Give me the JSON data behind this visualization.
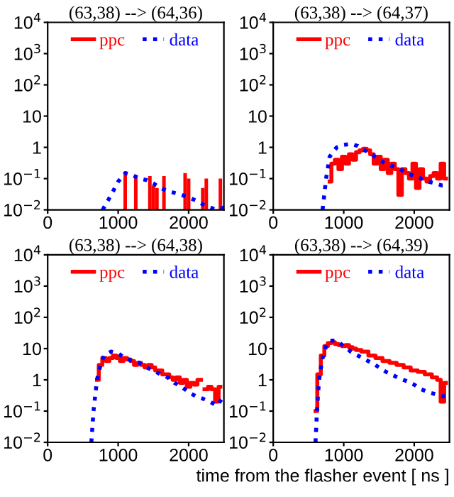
{
  "chart_data": [
    {
      "type": "line",
      "title": "(63,38) --> (64,36)",
      "log": "y",
      "xlim": [
        0,
        2500
      ],
      "ylim": [
        0.01,
        10000
      ],
      "xticks": [
        0,
        1000,
        2000
      ],
      "yticks": [
        {
          "value": 0.01,
          "label": "10$^{−2}$"
        },
        {
          "value": 0.1,
          "label": "10$^{−1}$"
        },
        1,
        10,
        {
          "value": 100,
          "label": "10$^{2}$"
        },
        {
          "value": 1000,
          "label": "10$^{3}$"
        },
        {
          "value": 10000,
          "label": "10$^{4}$"
        }
      ],
      "legend": "top",
      "grid": false,
      "series": [
        {
          "name": "ppc",
          "color": "#ff0000",
          "type": "bar",
          "x": [
            1100,
            1250,
            1450,
            1500,
            1550,
            1650,
            1950,
            2000,
            2200,
            2250,
            2450
          ],
          "values": [
            0.15,
            0.13,
            0.12,
            0.06,
            0.05,
            0.12,
            0.15,
            0.1,
            0.05,
            0.1,
            0.1
          ]
        },
        {
          "name": "data",
          "color": "#0000ff",
          "line_style": "dotted",
          "x": [
            780,
            900,
            1000,
            1100,
            1200,
            1300,
            1400,
            1500,
            1600,
            1700,
            1800,
            1900,
            2000,
            2100,
            2200,
            2300,
            2400,
            2500
          ],
          "values": [
            0.01,
            0.03,
            0.08,
            0.15,
            0.13,
            0.1,
            0.09,
            0.07,
            0.05,
            0.04,
            0.035,
            0.03,
            0.025,
            0.02,
            0.015,
            0.012,
            0.01,
            0.012
          ]
        }
      ]
    },
    {
      "type": "line",
      "title": "(63,38) --> (64,37)",
      "log": "y",
      "xlim": [
        0,
        2500
      ],
      "ylim": [
        0.01,
        10000
      ],
      "xticks": [
        0,
        1000,
        2000
      ],
      "yticks": [
        {
          "value": 0.01,
          "label": "10$^{−2}$"
        },
        {
          "value": 0.1,
          "label": "10$^{−1}$"
        },
        1,
        10,
        {
          "value": 100,
          "label": "10$^{2}$"
        },
        {
          "value": 1000,
          "label": "10$^{3}$"
        },
        {
          "value": 10000,
          "label": "10$^{4}$"
        }
      ],
      "legend": "top",
      "grid": false,
      "series": [
        {
          "name": "ppc",
          "color": "#ff0000",
          "type": "step",
          "line_style": "solid",
          "x": [
            800,
            850,
            900,
            950,
            1000,
            1050,
            1100,
            1150,
            1200,
            1250,
            1300,
            1350,
            1400,
            1450,
            1500,
            1550,
            1600,
            1650,
            1700,
            1750,
            1800,
            1850,
            1900,
            1950,
            2000,
            2050,
            2100,
            2150,
            2200,
            2250,
            2300,
            2350,
            2400,
            2450
          ],
          "values": [
            0.08,
            0.3,
            0.4,
            0.2,
            0.5,
            0.3,
            0.6,
            0.4,
            0.7,
            0.8,
            0.9,
            0.8,
            0.6,
            0.3,
            0.5,
            0.2,
            0.4,
            0.15,
            0.3,
            0.2,
            0.03,
            0.2,
            0.15,
            0.1,
            0.3,
            0.05,
            0.2,
            0.1,
            0.08,
            0.12,
            0.15,
            0.1,
            0.3,
            0.1
          ]
        },
        {
          "name": "data",
          "color": "#0000ff",
          "line_style": "dotted",
          "x": [
            700,
            750,
            800,
            900,
            1000,
            1100,
            1200,
            1300,
            1400,
            1500,
            1600,
            1700,
            1800,
            1900,
            2000,
            2100,
            2200,
            2300,
            2400,
            2500
          ],
          "values": [
            0.01,
            0.1,
            0.5,
            1.0,
            1.2,
            1.3,
            1.1,
            0.8,
            0.6,
            0.4,
            0.3,
            0.25,
            0.2,
            0.15,
            0.12,
            0.1,
            0.08,
            0.07,
            0.06,
            0.06
          ]
        }
      ]
    },
    {
      "type": "line",
      "title": "(63,38) --> (64,38)",
      "log": "y",
      "xlim": [
        0,
        2500
      ],
      "ylim": [
        0.01,
        10000
      ],
      "xticks": [
        0,
        1000,
        2000
      ],
      "yticks": [
        {
          "value": 0.01,
          "label": "10$^{−2}$"
        },
        {
          "value": 0.1,
          "label": "10$^{−1}$"
        },
        1,
        10,
        {
          "value": 100,
          "label": "10$^{2}$"
        },
        {
          "value": 1000,
          "label": "10$^{3}$"
        },
        {
          "value": 10000,
          "label": "10$^{4}$"
        }
      ],
      "legend": "top",
      "grid": false,
      "series": [
        {
          "name": "ppc",
          "color": "#ff0000",
          "type": "step",
          "line_style": "solid",
          "x": [
            700,
            750,
            800,
            850,
            900,
            950,
            1000,
            1050,
            1100,
            1150,
            1200,
            1250,
            1300,
            1350,
            1400,
            1450,
            1500,
            1550,
            1600,
            1650,
            1700,
            1750,
            1800,
            1850,
            1900,
            1950,
            2000,
            2050,
            2100,
            2150,
            2200,
            2250,
            2300,
            2350,
            2400,
            2450
          ],
          "values": [
            1,
            3,
            5,
            4,
            5,
            6,
            5,
            4,
            5,
            4.5,
            4,
            3,
            3.5,
            3,
            2.5,
            3,
            2.5,
            2,
            2,
            1.5,
            1.5,
            1.2,
            1,
            1.2,
            0.8,
            1,
            0.6,
            0.8,
            0.7,
            1,
            null,
            0.5,
            0.6,
            0.5,
            0.2,
            0.6
          ]
        },
        {
          "name": "data",
          "color": "#0000ff",
          "line_style": "dotted",
          "x": [
            620,
            650,
            700,
            750,
            800,
            900,
            1000,
            1100,
            1200,
            1300,
            1400,
            1500,
            1600,
            1700,
            1800,
            1900,
            2000,
            2100,
            2200,
            2300,
            2400,
            2500
          ],
          "values": [
            0.01,
            0.1,
            1,
            3,
            6,
            8,
            7,
            5,
            4,
            3.5,
            2.5,
            2,
            1.5,
            1.2,
            0.8,
            0.6,
            0.4,
            0.3,
            0.25,
            0.2,
            0.15,
            0.3
          ]
        }
      ]
    },
    {
      "type": "line",
      "title": "(63,38) --> (64,39)",
      "xlabel": "time from the flasher event [ ns ]",
      "log": "y",
      "xlim": [
        0,
        2500
      ],
      "ylim": [
        0.01,
        10000
      ],
      "xticks": [
        0,
        1000,
        2000
      ],
      "yticks": [
        {
          "value": 0.01,
          "label": "10$^{−2}$"
        },
        {
          "value": 0.1,
          "label": "10$^{−1}$"
        },
        1,
        10,
        {
          "value": 100,
          "label": "10$^{2}$"
        },
        {
          "value": 1000,
          "label": "10$^{3}$"
        },
        {
          "value": 10000,
          "label": "10$^{4}$"
        }
      ],
      "legend": "top",
      "grid": false,
      "series": [
        {
          "name": "ppc",
          "color": "#ff0000",
          "type": "step",
          "line_style": "solid",
          "x": [
            600,
            650,
            700,
            750,
            800,
            850,
            900,
            950,
            1000,
            1050,
            1100,
            1150,
            1200,
            1300,
            1400,
            1500,
            1600,
            1700,
            1800,
            1900,
            2000,
            2100,
            2200,
            2300,
            2350,
            2400,
            2450
          ],
          "values": [
            0.1,
            1.5,
            6,
            12,
            15,
            16,
            14,
            13,
            12,
            13,
            11,
            10,
            9,
            8,
            6,
            5,
            4,
            3.5,
            3,
            2.5,
            2,
            1.8,
            1.5,
            1.2,
            1.0,
            0.2,
            0.8
          ]
        },
        {
          "name": "data",
          "color": "#0000ff",
          "line_style": "dotted",
          "x": [
            600,
            620,
            650,
            700,
            750,
            800,
            900,
            1000,
            1100,
            1200,
            1300,
            1400,
            1500,
            1600,
            1700,
            1800,
            1900,
            2000,
            2100,
            2200,
            2300,
            2400,
            2500
          ],
          "values": [
            0.01,
            0.1,
            1,
            5,
            12,
            18,
            18,
            12,
            8,
            6,
            4.5,
            3.5,
            2.5,
            1.8,
            1.4,
            1.1,
            0.9,
            0.7,
            0.5,
            0.4,
            0.35,
            0.3,
            0.3
          ]
        }
      ]
    }
  ]
}
